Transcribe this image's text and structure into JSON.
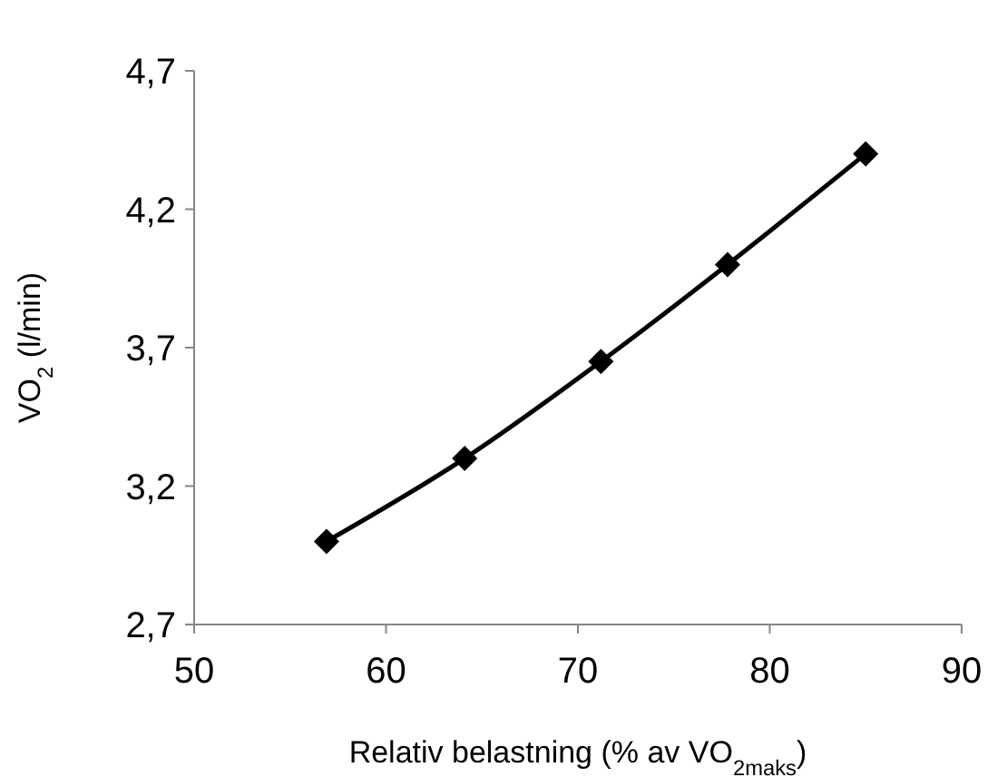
{
  "chart_data": {
    "type": "line",
    "xlabel": "Relativ belastning (% av VO$_{2maks}$)",
    "ylabel": "VO$_{2}$ (l/min)",
    "x": [
      56.9,
      64.1,
      71.2,
      77.8,
      85.0
    ],
    "series": [
      {
        "color": "#000000",
        "values": [
          3.0,
          3.3,
          3.65,
          4.0,
          4.4
        ]
      }
    ],
    "xlim": [
      50,
      90
    ],
    "xticks": [
      50,
      60,
      70,
      80,
      90
    ],
    "ylim": [
      2.7,
      4.7
    ],
    "yticks": [
      {
        "value": 2.7,
        "label": "2,7"
      },
      {
        "value": 3.2,
        "label": "3,2"
      },
      {
        "value": 3.7,
        "label": "3,7"
      },
      {
        "value": 4.2,
        "label": "4,2"
      },
      {
        "value": 4.7,
        "label": "4,7"
      }
    ],
    "marker": "diamond",
    "line_style": "solid",
    "grid": false
  }
}
